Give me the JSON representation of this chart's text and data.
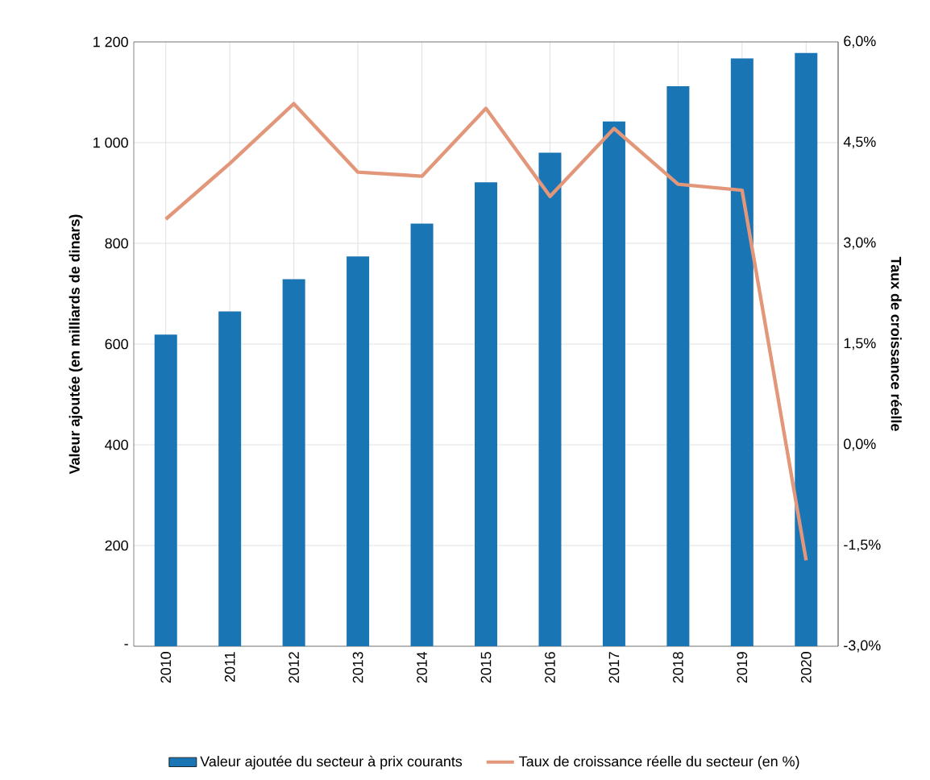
{
  "chart_data": {
    "type": "bar",
    "ylabel": "Valeur ajoutée (en milliards de dinars)",
    "y2label": "Taux de croissance réelle",
    "categories": [
      "2010",
      "2011",
      "2012",
      "2013",
      "2014",
      "2015",
      "2016",
      "2017",
      "2018",
      "2019",
      "2020"
    ],
    "series": [
      {
        "name": "Valeur ajoutée du secteur à prix courants",
        "color": "#1a75b5",
        "values": [
          619,
          665,
          729,
          774,
          839,
          921,
          980,
          1042,
          1112,
          1167,
          1178
        ]
      },
      {
        "name": "Taux de croissance réelle du secteur (en %)",
        "type": "line",
        "axis": "y2",
        "color": "#e3977a",
        "values": [
          3.36,
          4.19,
          5.08,
          4.06,
          4.0,
          5.01,
          3.7,
          4.71,
          3.88,
          3.79,
          -1.72
        ]
      }
    ],
    "ylim": [
      0,
      1200
    ],
    "yticks": [
      {
        "value": 0,
        "label": "-"
      },
      200,
      400,
      600,
      800,
      {
        "value": 1000,
        "label": "1 000"
      },
      {
        "value": 1200,
        "label": "1 200"
      }
    ],
    "y2lim": [
      -3,
      6
    ],
    "y2ticks": [
      {
        "value": -3,
        "label": "-3,0%"
      },
      {
        "value": -1.5,
        "label": "-1,5%"
      },
      {
        "value": 0,
        "label": "0,0%"
      },
      {
        "value": 1.5,
        "label": "1,5%"
      },
      {
        "value": 3,
        "label": "3,0%"
      },
      {
        "value": 4.5,
        "label": "4,5%"
      },
      {
        "value": 6,
        "label": "6,0%"
      }
    ],
    "grid": true,
    "legend": "bottom",
    "marker": "none",
    "line_style": "solid"
  }
}
